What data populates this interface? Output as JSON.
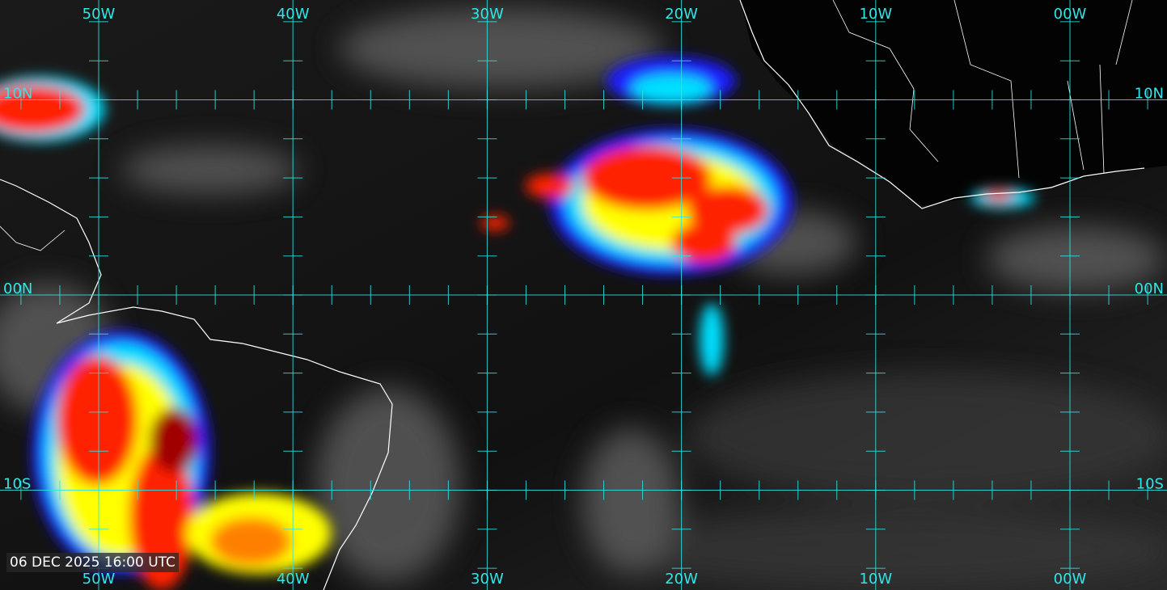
{
  "timestamp": "06 DEC 2025 16:00 UTC",
  "grid": {
    "color": "#2fe6e6",
    "longitudes": [
      {
        "value": -50,
        "label": "50W"
      },
      {
        "value": -40,
        "label": "40W"
      },
      {
        "value": -30,
        "label": "30W"
      },
      {
        "value": -20,
        "label": "20W"
      },
      {
        "value": -10,
        "label": "10W"
      },
      {
        "value": 0,
        "label": "00W"
      }
    ],
    "latitudes": [
      {
        "value": 10,
        "label": "10N"
      },
      {
        "value": 0,
        "label": "00N"
      },
      {
        "value": -10,
        "label": "10S"
      }
    ],
    "tick_interval_deg": 2
  },
  "imagery": {
    "type": "infrared satellite, enhanced color",
    "color_scale": [
      "#1a1aff",
      "#00e0ff",
      "#ffff00",
      "#ff8000",
      "#ff0000",
      "#a00000"
    ]
  }
}
